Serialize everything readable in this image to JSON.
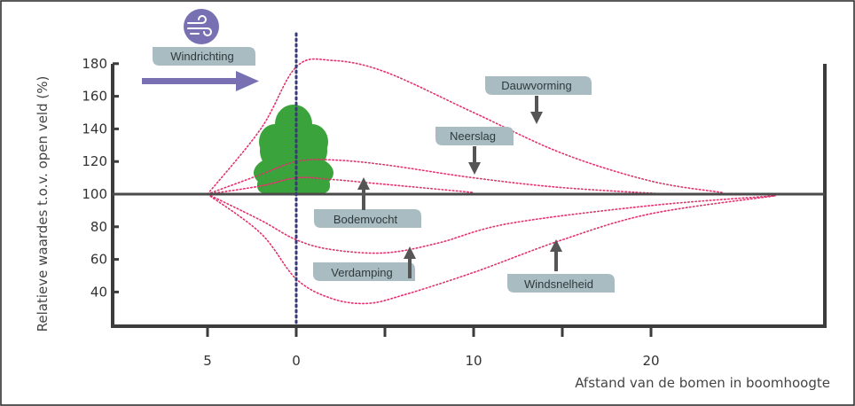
{
  "chart_data": {
    "type": "line",
    "xlabel": "Afstand van de bomen in boomhoogte",
    "ylabel": "Relatieve waardes t.o.v. open veld (%)",
    "x_ticks": [
      "5",
      "0",
      "10",
      "20"
    ],
    "y_ticks": [
      "40",
      "60",
      "80",
      "100",
      "120",
      "140",
      "160",
      "180"
    ],
    "baseline": 100,
    "ylim": [
      20,
      190
    ],
    "series": [
      {
        "name": "Dauwvorming",
        "x": [
          -5,
          -2,
          0,
          2,
          5,
          10,
          15,
          20,
          24
        ],
        "y": [
          100,
          140,
          178,
          182,
          175,
          150,
          125,
          108,
          101
        ]
      },
      {
        "name": "Neerslag",
        "x": [
          -5,
          -2,
          0,
          2,
          5,
          10,
          15,
          21
        ],
        "y": [
          100,
          112,
          120,
          121,
          118,
          110,
          104,
          100
        ]
      },
      {
        "name": "Bodemvocht",
        "x": [
          -5,
          -2,
          0,
          2,
          5,
          10
        ],
        "y": [
          100,
          105,
          110,
          109,
          106,
          101
        ]
      },
      {
        "name": "Verdamping",
        "x": [
          -5,
          -2,
          0,
          2,
          5,
          8,
          12,
          20,
          27
        ],
        "y": [
          100,
          84,
          72,
          66,
          64,
          70,
          82,
          93,
          99
        ]
      },
      {
        "name": "Windsnelheid",
        "x": [
          -5,
          -2,
          0,
          2,
          4,
          6,
          10,
          15,
          20,
          27
        ],
        "y": [
          100,
          76,
          48,
          36,
          33,
          38,
          52,
          72,
          88,
          99
        ]
      }
    ]
  },
  "labels": {
    "windrichting": "Windrichting",
    "dauwvorming": "Dauwvorming",
    "neerslag": "Neerslag",
    "bodemvocht": "Bodemvocht",
    "verdamping": "Verdamping",
    "windsnelheid": "Windsnelheid"
  },
  "icons": {
    "wind": "wind-icon",
    "tree": "tree-icon"
  },
  "colors": {
    "curve": "#e0336b",
    "tree": "#3ba33b",
    "arrow": "#7770b3",
    "label_box": "#a9bcc2",
    "axis": "#3c3c3c"
  }
}
